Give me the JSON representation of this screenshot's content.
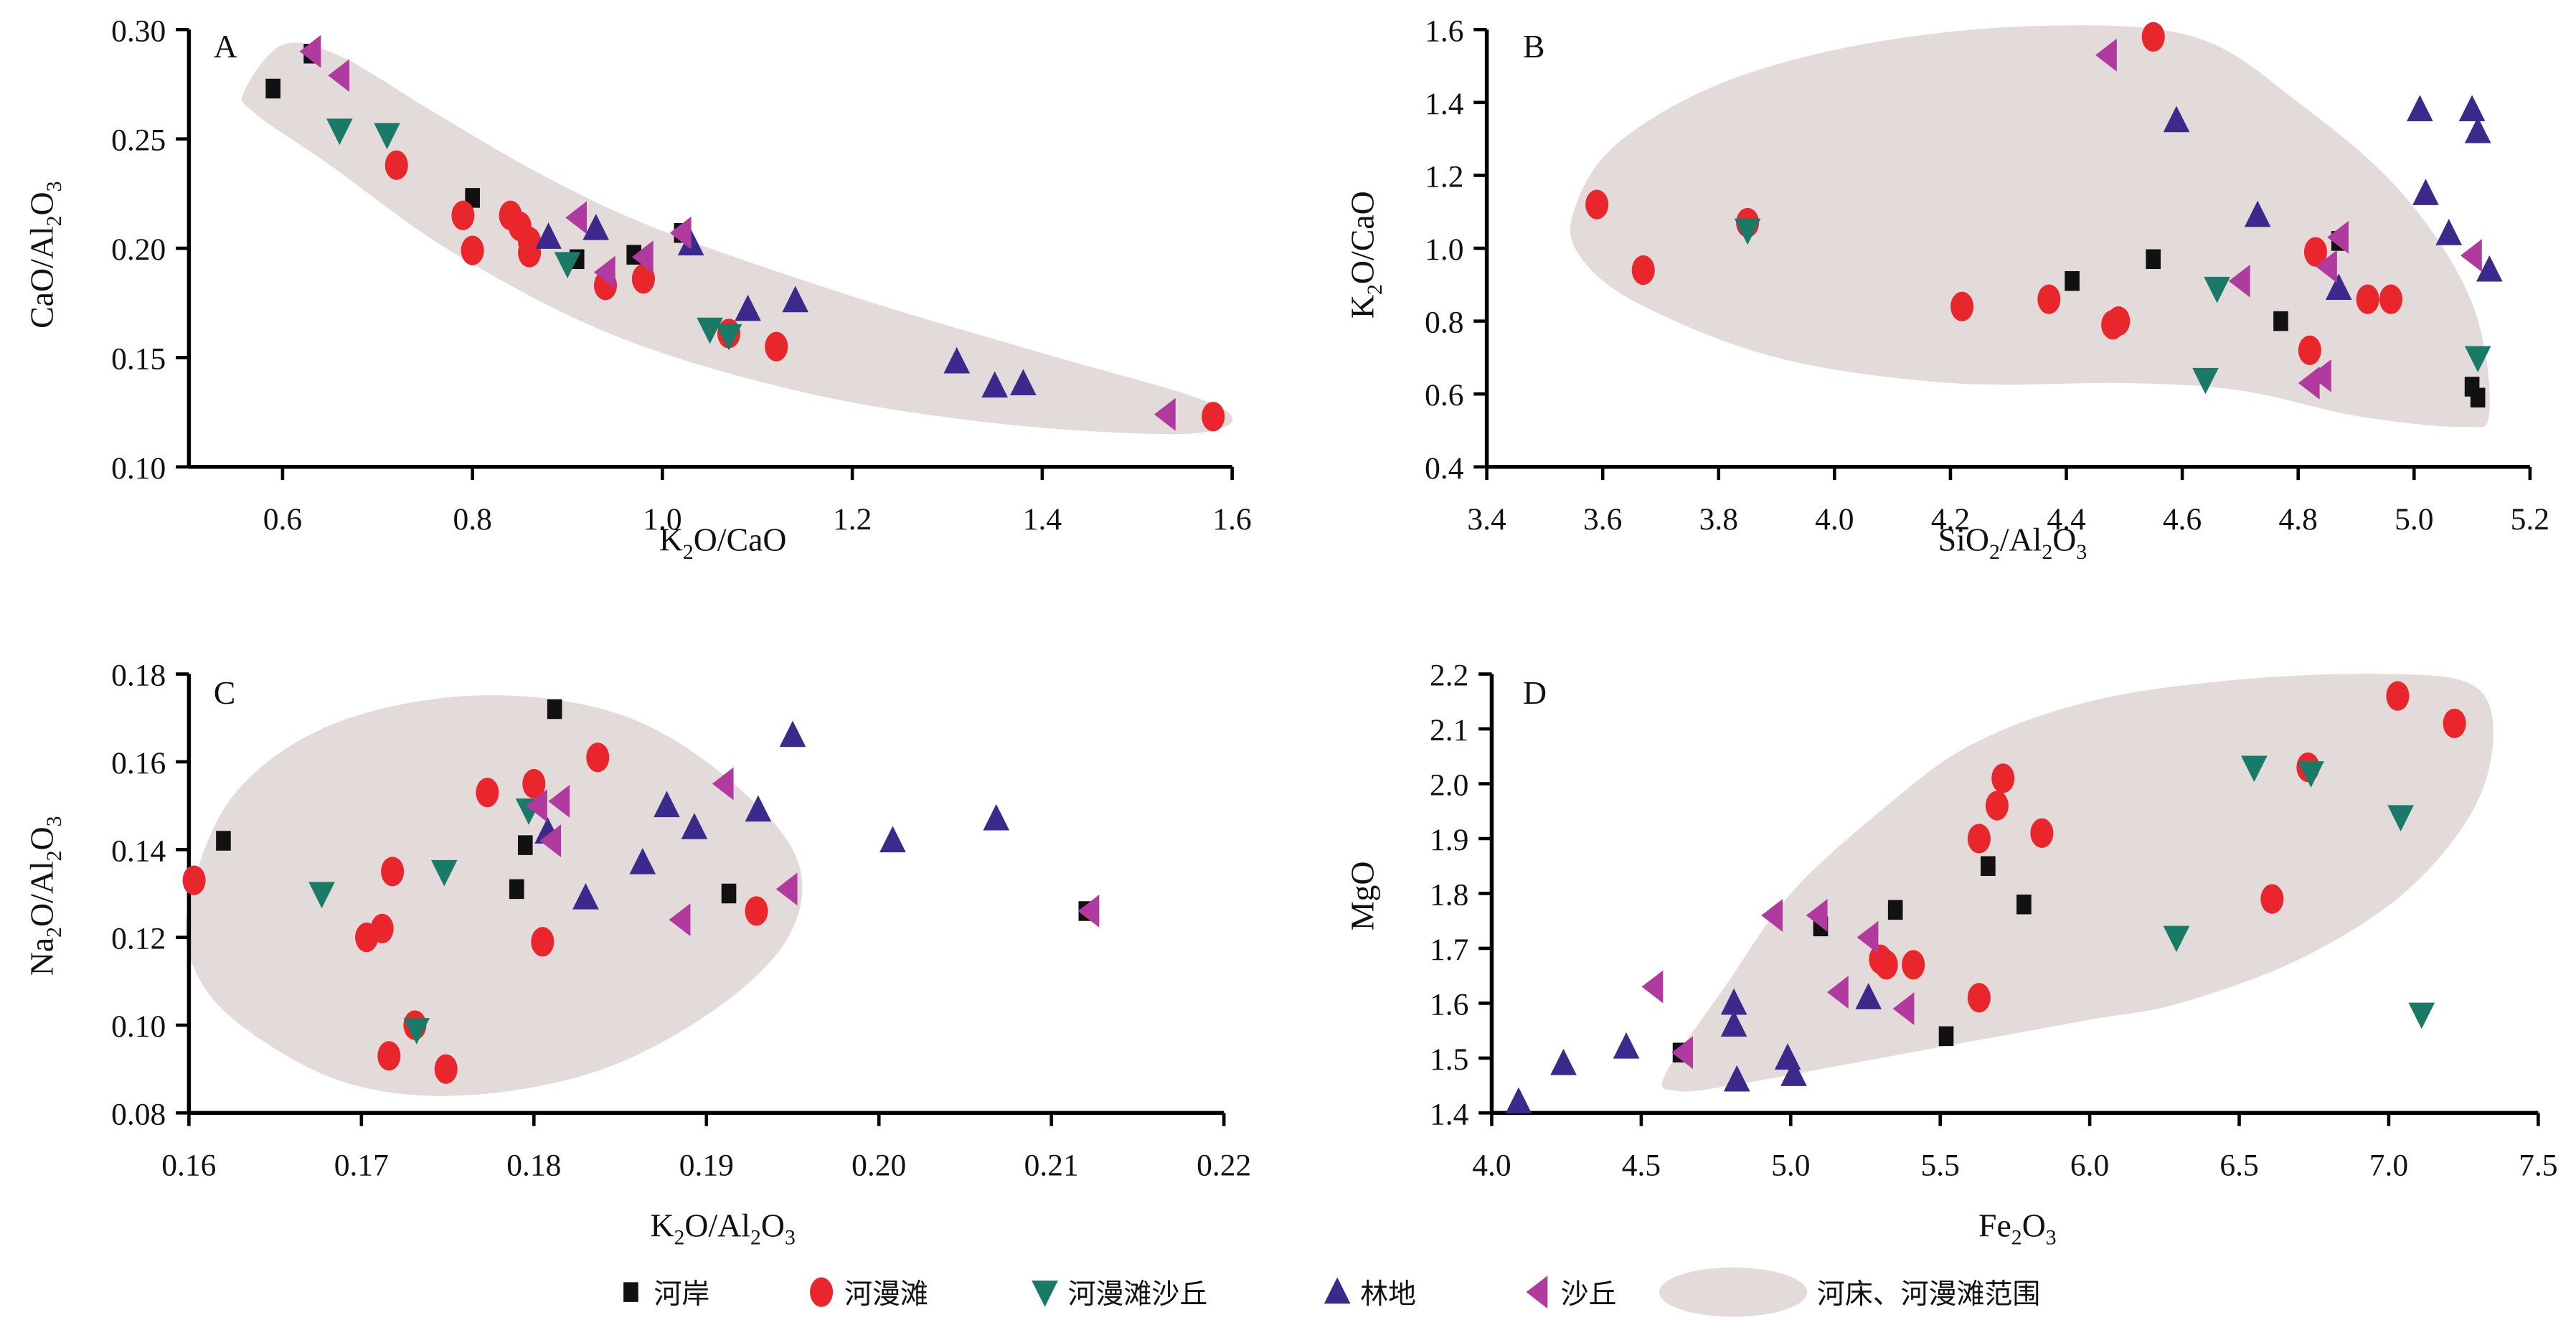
{
  "legend": {
    "items": [
      {
        "key": "hean",
        "label": "河岸",
        "shape": "square",
        "color": "#111111"
      },
      {
        "key": "hemantan",
        "label": "河漫滩",
        "shape": "circle",
        "color": "#e8262b"
      },
      {
        "key": "hemantan_shaqiu",
        "label": "河漫滩沙丘",
        "shape": "triangle-down",
        "color": "#1a7a68"
      },
      {
        "key": "lindi",
        "label": "林地",
        "shape": "triangle-up",
        "color": "#3b2a8c"
      },
      {
        "key": "shaqiu",
        "label": "沙丘",
        "shape": "triangle-left",
        "color": "#b03a9e"
      },
      {
        "key": "range",
        "label": "河床、河漫滩范围",
        "shape": "ellipse",
        "color": "#e3dada"
      }
    ]
  },
  "chart_data": [
    {
      "type": "scatter",
      "panel": "A",
      "xlabel": "K2O/CaO",
      "ylabel": "CaO/Al2O3",
      "xlim": [
        0.5,
        1.6
      ],
      "ylim": [
        0.1,
        0.3
      ],
      "xticks": [
        "0.6",
        "0.8",
        "1.0",
        "1.2",
        "1.4",
        "1.6"
      ],
      "yticks": [
        "0.10",
        "0.15",
        "0.20",
        "0.25",
        "0.30"
      ],
      "xtick_values": [
        0.6,
        0.8,
        1.0,
        1.2,
        1.4,
        1.6
      ],
      "ytick_values": [
        0.1,
        0.15,
        0.2,
        0.25,
        0.3
      ],
      "series": [
        {
          "name": "河岸",
          "points": [
            [
              0.59,
              0.273
            ],
            [
              0.63,
              0.289
            ],
            [
              0.8,
              0.223
            ],
            [
              0.91,
              0.195
            ],
            [
              0.97,
              0.197
            ],
            [
              1.02,
              0.207
            ]
          ]
        },
        {
          "name": "河漫滩",
          "points": [
            [
              0.72,
              0.238
            ],
            [
              0.79,
              0.215
            ],
            [
              0.8,
              0.199
            ],
            [
              0.84,
              0.215
            ],
            [
              0.85,
              0.21
            ],
            [
              0.86,
              0.203
            ],
            [
              0.86,
              0.198
            ],
            [
              0.94,
              0.183
            ],
            [
              0.98,
              0.186
            ],
            [
              1.07,
              0.161
            ],
            [
              1.12,
              0.155
            ],
            [
              1.58,
              0.123
            ]
          ]
        },
        {
          "name": "河漫滩沙丘",
          "points": [
            [
              0.66,
              0.254
            ],
            [
              0.71,
              0.252
            ],
            [
              0.9,
              0.193
            ],
            [
              1.05,
              0.163
            ],
            [
              1.07,
              0.16
            ]
          ]
        },
        {
          "name": "林地",
          "points": [
            [
              0.88,
              0.205
            ],
            [
              0.93,
              0.209
            ],
            [
              1.03,
              0.202
            ],
            [
              1.09,
              0.172
            ],
            [
              1.14,
              0.176
            ],
            [
              1.31,
              0.148
            ],
            [
              1.35,
              0.137
            ],
            [
              1.38,
              0.138
            ]
          ]
        },
        {
          "name": "沙丘",
          "points": [
            [
              0.63,
              0.29
            ],
            [
              0.66,
              0.279
            ],
            [
              0.91,
              0.214
            ],
            [
              0.94,
              0.189
            ],
            [
              0.98,
              0.196
            ],
            [
              1.02,
              0.207
            ],
            [
              1.53,
              0.124
            ]
          ]
        }
      ],
      "range_outline": [
        [
          0.56,
          0.272
        ],
        [
          0.6,
          0.293
        ],
        [
          0.66,
          0.288
        ],
        [
          0.76,
          0.262
        ],
        [
          0.88,
          0.232
        ],
        [
          1.0,
          0.208
        ],
        [
          1.2,
          0.178
        ],
        [
          1.4,
          0.152
        ],
        [
          1.56,
          0.132
        ],
        [
          1.6,
          0.121
        ],
        [
          1.54,
          0.115
        ],
        [
          1.35,
          0.12
        ],
        [
          1.15,
          0.134
        ],
        [
          0.95,
          0.16
        ],
        [
          0.78,
          0.198
        ],
        [
          0.65,
          0.238
        ],
        [
          0.57,
          0.262
        ]
      ]
    },
    {
      "type": "scatter",
      "panel": "B",
      "xlabel": "SiO2/Al2O3",
      "ylabel": "K2O/CaO",
      "xlim": [
        3.4,
        5.2
      ],
      "ylim": [
        0.4,
        1.6
      ],
      "xticks": [
        "3.4",
        "3.6",
        "3.8",
        "4.0",
        "4.2",
        "4.4",
        "4.6",
        "4.8",
        "5.0",
        "5.2"
      ],
      "yticks": [
        "0.4",
        "0.6",
        "0.8",
        "1.0",
        "1.2",
        "1.4",
        "1.6"
      ],
      "xtick_values": [
        3.4,
        3.6,
        3.8,
        4.0,
        4.2,
        4.4,
        4.6,
        4.8,
        5.0,
        5.2
      ],
      "ytick_values": [
        0.4,
        0.6,
        0.8,
        1.0,
        1.2,
        1.4,
        1.6
      ],
      "series": [
        {
          "name": "河岸",
          "points": [
            [
              4.41,
              0.91
            ],
            [
              4.55,
              0.97
            ],
            [
              4.77,
              0.8
            ],
            [
              4.87,
              1.02
            ],
            [
              5.1,
              0.62
            ],
            [
              5.11,
              0.59
            ]
          ]
        },
        {
          "name": "河漫滩",
          "points": [
            [
              3.59,
              1.12
            ],
            [
              3.67,
              0.94
            ],
            [
              3.85,
              1.07
            ],
            [
              4.22,
              0.84
            ],
            [
              4.37,
              0.86
            ],
            [
              4.48,
              0.79
            ],
            [
              4.49,
              0.8
            ],
            [
              4.55,
              1.58
            ],
            [
              4.82,
              0.72
            ],
            [
              4.83,
              0.99
            ],
            [
              4.92,
              0.86
            ],
            [
              4.96,
              0.86
            ]
          ]
        },
        {
          "name": "河漫滩沙丘",
          "points": [
            [
              3.85,
              1.05
            ],
            [
              4.64,
              0.64
            ],
            [
              4.66,
              0.89
            ],
            [
              5.11,
              0.7
            ]
          ]
        },
        {
          "name": "林地",
          "points": [
            [
              4.59,
              1.35
            ],
            [
              4.73,
              1.09
            ],
            [
              4.87,
              0.89
            ],
            [
              5.01,
              1.38
            ],
            [
              5.02,
              1.15
            ],
            [
              5.06,
              1.04
            ],
            [
              5.1,
              1.38
            ],
            [
              5.11,
              1.32
            ],
            [
              5.13,
              0.94
            ]
          ]
        },
        {
          "name": "沙丘",
          "points": [
            [
              4.47,
              1.53
            ],
            [
              4.7,
              0.91
            ],
            [
              4.82,
              0.63
            ],
            [
              4.84,
              0.65
            ],
            [
              4.85,
              0.95
            ],
            [
              4.87,
              1.03
            ],
            [
              5.1,
              0.98
            ]
          ]
        }
      ],
      "range_outline": [
        [
          3.55,
          1.1
        ],
        [
          3.62,
          1.28
        ],
        [
          3.8,
          1.45
        ],
        [
          4.05,
          1.56
        ],
        [
          4.35,
          1.61
        ],
        [
          4.62,
          1.58
        ],
        [
          4.8,
          1.4
        ],
        [
          4.98,
          1.15
        ],
        [
          5.1,
          0.85
        ],
        [
          5.13,
          0.55
        ],
        [
          5.08,
          0.51
        ],
        [
          4.9,
          0.54
        ],
        [
          4.7,
          0.61
        ],
        [
          4.5,
          0.63
        ],
        [
          4.2,
          0.63
        ],
        [
          3.9,
          0.7
        ],
        [
          3.66,
          0.85
        ],
        [
          3.56,
          0.98
        ]
      ]
    },
    {
      "type": "scatter",
      "panel": "C",
      "xlabel": "K2O/Al2O3",
      "ylabel": "Na2O/Al2O3",
      "xlim": [
        0.16,
        0.22
      ],
      "ylim": [
        0.08,
        0.18
      ],
      "xticks": [
        "0.16",
        "0.17",
        "0.18",
        "0.19",
        "0.20",
        "0.21",
        "0.22"
      ],
      "yticks": [
        "0.08",
        "0.10",
        "0.12",
        "0.14",
        "0.16",
        "0.18"
      ],
      "xtick_values": [
        0.16,
        0.17,
        0.18,
        0.19,
        0.2,
        0.21,
        0.22
      ],
      "ytick_values": [
        0.08,
        0.1,
        0.12,
        0.14,
        0.16,
        0.18
      ],
      "series": [
        {
          "name": "河岸",
          "points": [
            [
              0.162,
              0.142
            ],
            [
              0.179,
              0.131
            ],
            [
              0.1795,
              0.141
            ],
            [
              0.1812,
              0.172
            ],
            [
              0.1913,
              0.13
            ],
            [
              0.212,
              0.126
            ]
          ]
        },
        {
          "name": "河漫滩",
          "points": [
            [
              0.1603,
              0.133
            ],
            [
              0.1703,
              0.12
            ],
            [
              0.1712,
              0.122
            ],
            [
              0.1718,
              0.135
            ],
            [
              0.1716,
              0.093
            ],
            [
              0.1731,
              0.1
            ],
            [
              0.1749,
              0.09
            ],
            [
              0.1773,
              0.153
            ],
            [
              0.18,
              0.155
            ],
            [
              0.1805,
              0.119
            ],
            [
              0.1837,
              0.161
            ],
            [
              0.1929,
              0.126
            ]
          ]
        },
        {
          "name": "河漫滩沙丘",
          "points": [
            [
              0.1677,
              0.13
            ],
            [
              0.1732,
              0.099
            ],
            [
              0.1748,
              0.135
            ],
            [
              0.1797,
              0.149
            ]
          ]
        },
        {
          "name": "林地",
          "points": [
            [
              0.1808,
              0.144
            ],
            [
              0.183,
              0.129
            ],
            [
              0.1863,
              0.137
            ],
            [
              0.1877,
              0.15
            ],
            [
              0.1893,
              0.145
            ],
            [
              0.193,
              0.149
            ],
            [
              0.195,
              0.166
            ],
            [
              0.2008,
              0.142
            ],
            [
              0.2068,
              0.147
            ]
          ]
        },
        {
          "name": "沙丘",
          "points": [
            [
              0.1802,
              0.15
            ],
            [
              0.181,
              0.142
            ],
            [
              0.1815,
              0.151
            ],
            [
              0.1885,
              0.124
            ],
            [
              0.191,
              0.155
            ],
            [
              0.1947,
              0.131
            ],
            [
              0.2122,
              0.126
            ]
          ]
        }
      ],
      "range_outline": [
        [
          0.16,
          0.128
        ],
        [
          0.1625,
          0.152
        ],
        [
          0.168,
          0.168
        ],
        [
          0.176,
          0.175
        ],
        [
          0.184,
          0.172
        ],
        [
          0.19,
          0.16
        ],
        [
          0.195,
          0.14
        ],
        [
          0.195,
          0.122
        ],
        [
          0.191,
          0.105
        ],
        [
          0.184,
          0.09
        ],
        [
          0.176,
          0.084
        ],
        [
          0.169,
          0.087
        ],
        [
          0.163,
          0.1
        ],
        [
          0.1603,
          0.113
        ]
      ]
    },
    {
      "type": "scatter",
      "panel": "D",
      "xlabel": "Fe2O3",
      "ylabel": "MgO",
      "xlim": [
        4.0,
        7.5
      ],
      "ylim": [
        1.4,
        2.2
      ],
      "xticks": [
        "4.0",
        "4.5",
        "5.0",
        "5.5",
        "6.0",
        "6.5",
        "7.0",
        "7.5"
      ],
      "yticks": [
        "1.4",
        "1.5",
        "1.6",
        "1.7",
        "1.8",
        "1.9",
        "2.0",
        "2.1",
        "2.2"
      ],
      "xtick_values": [
        4.0,
        4.5,
        5.0,
        5.5,
        6.0,
        6.5,
        7.0,
        7.5
      ],
      "ytick_values": [
        1.4,
        1.5,
        1.6,
        1.7,
        1.8,
        1.9,
        2.0,
        2.1,
        2.2
      ],
      "series": [
        {
          "name": "河岸",
          "points": [
            [
              4.63,
              1.51
            ],
            [
              5.1,
              1.74
            ],
            [
              5.35,
              1.77
            ],
            [
              5.52,
              1.54
            ],
            [
              5.66,
              1.85
            ],
            [
              5.78,
              1.78
            ]
          ]
        },
        {
          "name": "河漫滩",
          "points": [
            [
              5.3,
              1.68
            ],
            [
              5.32,
              1.67
            ],
            [
              5.41,
              1.67
            ],
            [
              5.63,
              1.61
            ],
            [
              5.63,
              1.9
            ],
            [
              5.69,
              1.96
            ],
            [
              5.71,
              2.01
            ],
            [
              5.84,
              1.91
            ],
            [
              6.61,
              1.79
            ],
            [
              6.73,
              2.03
            ],
            [
              7.03,
              2.16
            ],
            [
              7.22,
              2.11
            ]
          ]
        },
        {
          "name": "河漫滩沙丘",
          "points": [
            [
              6.29,
              1.72
            ],
            [
              6.55,
              2.03
            ],
            [
              6.74,
              2.02
            ],
            [
              7.04,
              1.94
            ],
            [
              7.11,
              1.58
            ]
          ]
        },
        {
          "name": "林地",
          "points": [
            [
              4.09,
              1.42
            ],
            [
              4.24,
              1.49
            ],
            [
              4.45,
              1.52
            ],
            [
              4.81,
              1.6
            ],
            [
              4.81,
              1.56
            ],
            [
              4.82,
              1.46
            ],
            [
              4.99,
              1.5
            ],
            [
              5.01,
              1.47
            ],
            [
              5.26,
              1.61
            ]
          ]
        },
        {
          "name": "沙丘",
          "points": [
            [
              4.54,
              1.63
            ],
            [
              4.64,
              1.51
            ],
            [
              4.94,
              1.76
            ],
            [
              5.09,
              1.76
            ],
            [
              5.16,
              1.62
            ],
            [
              5.26,
              1.72
            ],
            [
              5.38,
              1.59
            ]
          ]
        }
      ],
      "range_outline": [
        [
          4.58,
          1.47
        ],
        [
          4.78,
          1.63
        ],
        [
          5.0,
          1.8
        ],
        [
          5.3,
          1.95
        ],
        [
          5.6,
          2.07
        ],
        [
          6.0,
          2.15
        ],
        [
          6.5,
          2.19
        ],
        [
          7.0,
          2.2
        ],
        [
          7.28,
          2.18
        ],
        [
          7.35,
          2.09
        ],
        [
          7.28,
          1.95
        ],
        [
          7.05,
          1.8
        ],
        [
          6.7,
          1.68
        ],
        [
          6.3,
          1.6
        ],
        [
          6.0,
          1.57
        ],
        [
          5.6,
          1.53
        ],
        [
          5.2,
          1.49
        ],
        [
          4.8,
          1.45
        ],
        [
          4.62,
          1.44
        ]
      ]
    }
  ]
}
